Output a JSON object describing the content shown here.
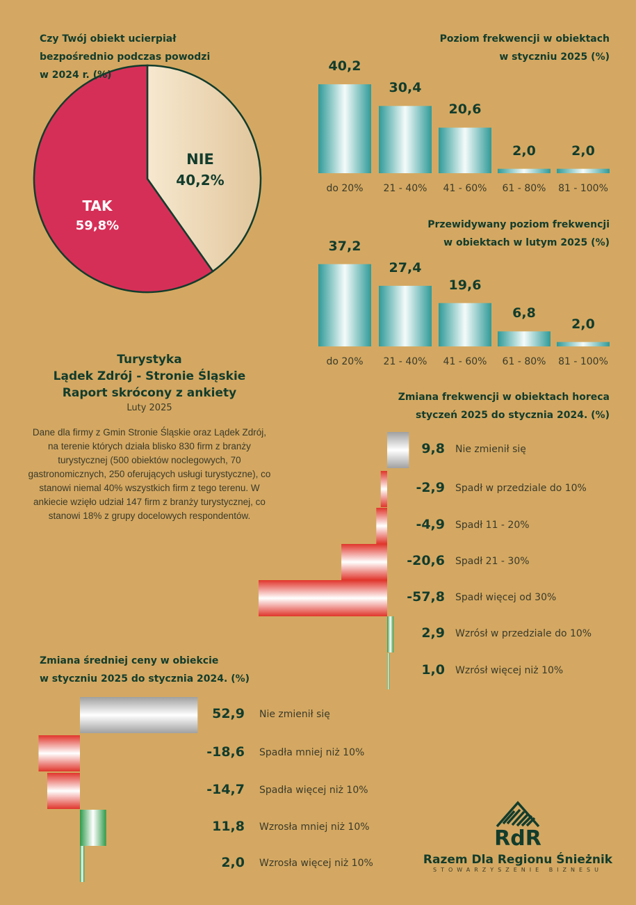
{
  "colors": {
    "background": "#d4a862",
    "text": "#123c2c",
    "tak": "#d62f57",
    "nie": "#f0dcbc",
    "teal": "#3aa3a0",
    "red": "#e0352b",
    "green": "#2e9a4a",
    "gray": "#a8a8a8"
  },
  "chart_data": [
    {
      "type": "pie",
      "title": "Czy Twój obiekt ucierpiał bezpośrednio podczas powodzi w 2024 r. (%)",
      "title_lines": [
        "Czy Twój obiekt ucierpiał",
        "bezpośrednio podczas powodzi",
        "w 2024 r. (%)"
      ],
      "slices": [
        {
          "name": "NIE",
          "value": 40.2,
          "label": "40,2%"
        },
        {
          "name": "TAK",
          "value": 59.8,
          "label": "59,8%"
        }
      ]
    },
    {
      "type": "bar",
      "title": "Poziom frekwencji w obiektach w styczniu 2025 (%)",
      "title_lines": [
        "Poziom frekwencji w obiektach",
        "w styczniu 2025 (%)"
      ],
      "categories": [
        "do 20%",
        "21 - 40%",
        "41 - 60%",
        "61 - 80%",
        "81 - 100%"
      ],
      "values": [
        40.2,
        30.4,
        20.6,
        2.0,
        2.0
      ],
      "labels": [
        "40,2",
        "30,4",
        "20,6",
        "2,0",
        "2,0"
      ]
    },
    {
      "type": "bar",
      "title": "Przewidywany poziom frekwencji w obiektach w lutym 2025 (%)",
      "title_lines": [
        "Przewidywany poziom frekwencji",
        "w obiektach w lutym 2025 (%)"
      ],
      "categories": [
        "do 20%",
        "21 - 40%",
        "41 - 60%",
        "61 - 80%",
        "81 - 100%"
      ],
      "values": [
        37.2,
        27.4,
        19.6,
        6.8,
        2.0
      ],
      "labels": [
        "37,2",
        "27,4",
        "19,6",
        "6,8",
        "2,0"
      ]
    },
    {
      "type": "bar",
      "orientation": "horizontal",
      "title": "Zmiana frekwencji w obiektach horeca styczeń 2025 do stycznia 2024. (%)",
      "title_lines": [
        "Zmiana frekwencji w obiektach horeca",
        "styczeń 2025 do stycznia 2024. (%)"
      ],
      "categories": [
        "Nie zmienił się",
        "Spadł w przedziale do 10%",
        "Spadł 11 - 20%",
        "Spadł 21 - 30%",
        "Spadł więcej od 30%",
        "Wzrósł w przedziale do 10%",
        "Wzrósł więcej niż 10%"
      ],
      "values": [
        9.8,
        -2.9,
        -4.9,
        -20.6,
        -57.8,
        2.9,
        1.0
      ],
      "labels": [
        "9,8",
        "-2,9",
        "-4,9",
        "-20,6",
        "-57,8",
        "2,9",
        "1,0"
      ],
      "kinds": [
        "gray",
        "red",
        "red",
        "red",
        "red",
        "green",
        "green"
      ]
    },
    {
      "type": "bar",
      "orientation": "horizontal",
      "title": "Zmiana średniej ceny w obiekcie w styczniu 2025 do stycznia 2024. (%)",
      "title_lines": [
        "Zmiana średniej ceny w obiekcie",
        "w styczniu 2025 do stycznia 2024. (%)"
      ],
      "categories": [
        "Nie zmienił się",
        "Spadła mniej niż 10%",
        "Spadła więcej niż 10%",
        "Wzrosła mniej niż 10%",
        "Wzrosła więcej niż 10%"
      ],
      "values": [
        52.9,
        -18.6,
        -14.7,
        11.8,
        2.0
      ],
      "labels": [
        "52,9",
        "-18,6",
        "-14,7",
        "11,8",
        "2,0"
      ],
      "kinds": [
        "gray",
        "red",
        "red",
        "green",
        "green"
      ]
    }
  ],
  "intro": {
    "title_lines": [
      "Turystyka",
      "Lądek Zdrój - Stronie Śląskie",
      "Raport skrócony z ankiety"
    ],
    "date": "Luty 2025",
    "body": "Dane dla firmy z Gmin Stronie Śląskie oraz Lądek Zdrój, na terenie których działa blisko 830 firm z branży turystycznej (500 obiektów noclegowych, 70 gastronomicznych, 250 oferujących usługi turystyczne), co stanowi niemal 40% wszystkich firm z tego terenu. W ankiecie wzięło udział 147 firm z branży turystycznej, co stanowi 18% z grupy docelowych respondentów."
  },
  "logo": {
    "mark": "RdR",
    "name": "Razem Dla Regionu Śnieżnik",
    "tagline": "STOWARZYSZENIE BIZNESU"
  }
}
